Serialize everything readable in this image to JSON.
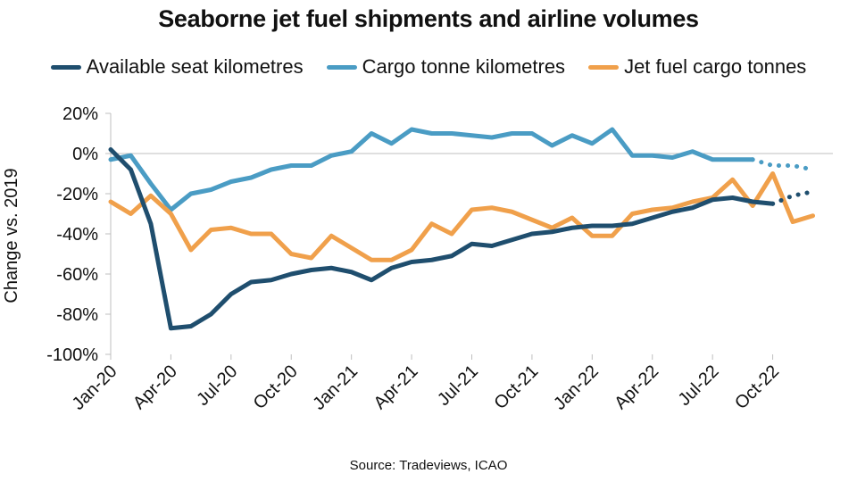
{
  "chart_data": {
    "type": "line",
    "title": "Seaborne jet fuel shipments and airline volumes",
    "ylabel": "Change vs. 2019",
    "xlabel": "",
    "ylim": [
      -100,
      20
    ],
    "yticks": [
      20,
      0,
      -20,
      -40,
      -60,
      -80,
      -100
    ],
    "ytick_labels": [
      "20%",
      "0%",
      "-20%",
      "-40%",
      "-60%",
      "-80%",
      "-100%"
    ],
    "x": [
      "Jan-20",
      "Feb-20",
      "Mar-20",
      "Apr-20",
      "May-20",
      "Jun-20",
      "Jul-20",
      "Aug-20",
      "Sep-20",
      "Oct-20",
      "Nov-20",
      "Dec-20",
      "Jan-21",
      "Feb-21",
      "Mar-21",
      "Apr-21",
      "May-21",
      "Jun-21",
      "Jul-21",
      "Aug-21",
      "Sep-21",
      "Oct-21",
      "Nov-21",
      "Dec-21",
      "Jan-22",
      "Feb-22",
      "Mar-22",
      "Apr-22",
      "May-22",
      "Jun-22",
      "Jul-22",
      "Aug-22",
      "Sep-22",
      "Oct-22",
      "Nov-22",
      "Dec-22",
      "Jan-23"
    ],
    "xtick_labels": [
      "Jan-20",
      "Apr-20",
      "Jul-20",
      "Oct-20",
      "Jan-21",
      "Apr-21",
      "Jul-21",
      "Oct-21",
      "Jan-22",
      "Apr-22",
      "Jul-22",
      "Oct-22"
    ],
    "legend_position": "top",
    "grid": false,
    "series": [
      {
        "name": "Available seat kilometres",
        "color": "#1f4e6e",
        "values": [
          2,
          -8,
          -35,
          -87,
          -86,
          -80,
          -70,
          -64,
          -63,
          -60,
          -58,
          -57,
          -59,
          -63,
          -57,
          -54,
          -53,
          -51,
          -45,
          -46,
          -43,
          -40,
          -39,
          -37,
          -36,
          -36,
          -35,
          -32,
          -29,
          -27,
          -23,
          -22,
          -24,
          -25,
          null,
          null,
          null
        ],
        "dotted_values": [
          null,
          null,
          null,
          null,
          null,
          null,
          null,
          null,
          null,
          null,
          null,
          null,
          null,
          null,
          null,
          null,
          null,
          null,
          null,
          null,
          null,
          null,
          null,
          null,
          null,
          null,
          null,
          null,
          null,
          null,
          null,
          null,
          null,
          -25,
          -21,
          -19,
          null
        ]
      },
      {
        "name": "Cargo tonne kilometres",
        "color": "#4a9cc4",
        "values": [
          -3,
          -1,
          -15,
          -28,
          -20,
          -18,
          -14,
          -12,
          -8,
          -6,
          -6,
          -1,
          1,
          10,
          5,
          12,
          10,
          10,
          9,
          8,
          10,
          10,
          4,
          9,
          5,
          12,
          -1,
          -1,
          -2,
          1,
          -3,
          -3,
          -3,
          null,
          null,
          null,
          null
        ],
        "dotted_values": [
          null,
          null,
          null,
          null,
          null,
          null,
          null,
          null,
          null,
          null,
          null,
          null,
          null,
          null,
          null,
          null,
          null,
          null,
          null,
          null,
          null,
          null,
          null,
          null,
          null,
          null,
          null,
          null,
          null,
          null,
          null,
          null,
          -3,
          -6,
          -6,
          -8,
          null
        ]
      },
      {
        "name": "Jet fuel cargo tonnes",
        "color": "#f0a04b",
        "values": [
          -24,
          -30,
          -21,
          -30,
          -48,
          -38,
          -37,
          -40,
          -40,
          -50,
          -52,
          -41,
          -47,
          -53,
          -53,
          -48,
          -35,
          -40,
          -28,
          -27,
          -29,
          -33,
          -37,
          -32,
          -41,
          -41,
          -30,
          -28,
          -27,
          -24,
          -22,
          -13,
          -26,
          -10,
          -34,
          -31,
          null
        ]
      }
    ]
  },
  "source": "Source: Tradeviews, ICAO"
}
